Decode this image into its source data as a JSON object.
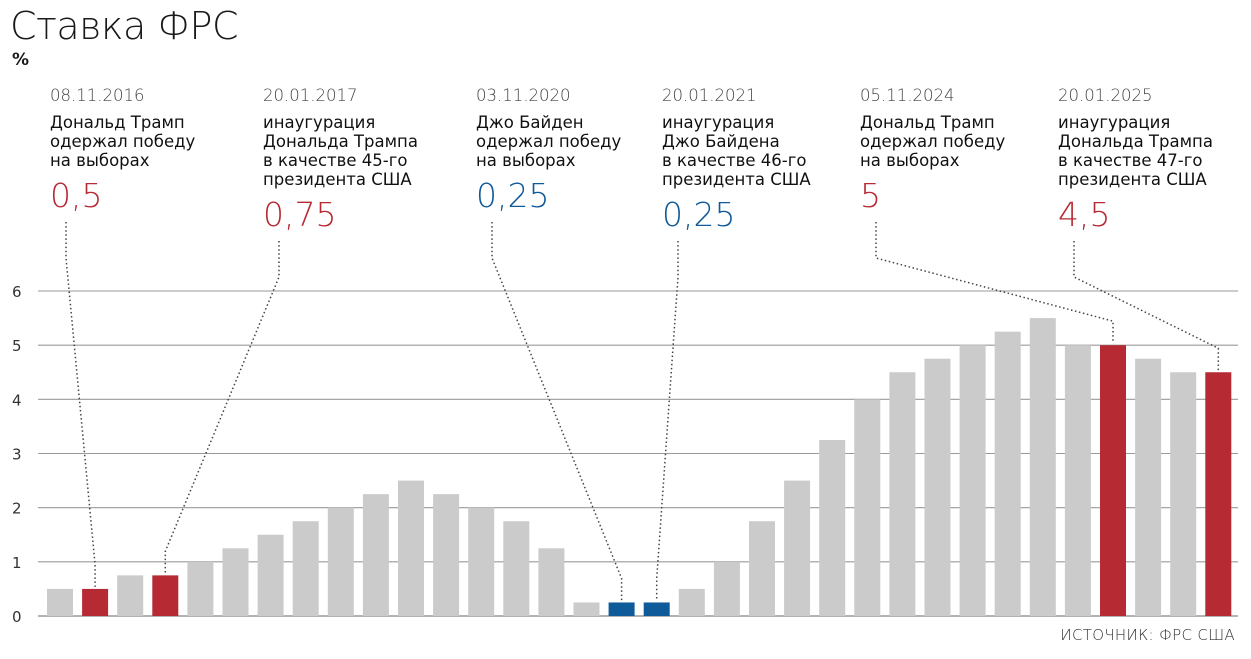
{
  "chart_data": {
    "type": "bar",
    "title": "Ставка ФРС",
    "ylabel": "%",
    "ylim": [
      0,
      6
    ],
    "yticks": [
      0,
      1,
      2,
      3,
      4,
      5,
      6
    ],
    "grid": true,
    "source": "ИСТОЧНИК: ФРС США",
    "values": [
      0.5,
      0.5,
      0.75,
      0.75,
      1,
      1.25,
      1.5,
      1.75,
      2,
      2.25,
      2.5,
      2.25,
      2,
      1.75,
      1.25,
      0.25,
      0.25,
      0.25,
      0.5,
      1,
      1.75,
      2.5,
      3.25,
      4,
      4.5,
      4.75,
      5,
      5.25,
      5.5,
      5,
      5,
      4.75,
      4.5,
      4.5
    ],
    "highlight": {
      "1": "red",
      "3": "red",
      "16": "blue",
      "17": "blue",
      "30": "red",
      "33": "red"
    },
    "colors": {
      "default": "#cbcbcb",
      "red": "#b52a33",
      "blue": "#0f5a99",
      "grid": "#9a9a9a",
      "leader": "#444444"
    },
    "events": [
      {
        "date": "08.11.2016",
        "desc": "Дональд Трамп\nодержал победу\nна выборах",
        "rate": "0,5",
        "color": "red",
        "bar": 1
      },
      {
        "date": "20.01.2017",
        "desc": "инаугурация\nДональда Трампа\nв качестве 45-го\nпрезидента США",
        "rate": "0,75",
        "color": "red",
        "bar": 3
      },
      {
        "date": "03.11.2020",
        "desc": "Джо Байден\nодержал победу\nна выборах",
        "rate": "0,25",
        "color": "blue",
        "bar": 16
      },
      {
        "date": "20.01.2021",
        "desc": "инаугурация\nДжо Байдена\nв качестве 46-го\nпрезидента США",
        "rate": "0,25",
        "color": "blue",
        "bar": 17
      },
      {
        "date": "05.11.2024",
        "desc": "Дональд Трамп\nодержал победу\nна выборах",
        "rate": "5",
        "color": "red",
        "bar": 30
      },
      {
        "date": "20.01.2025",
        "desc": "инаугурация\nДональда Трампа\nв качестве 47-го\nпрезидента США",
        "rate": "4,5",
        "color": "red",
        "bar": 33
      }
    ]
  }
}
